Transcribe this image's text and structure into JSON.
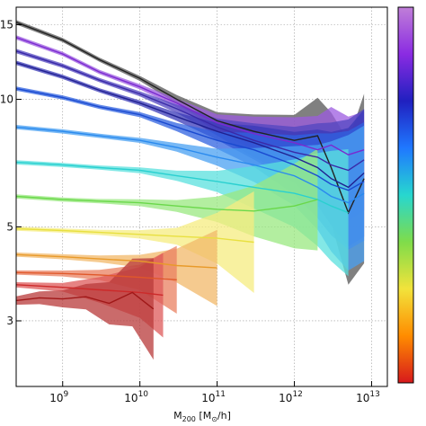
{
  "chart_data": {
    "type": "line",
    "title": "",
    "ylabel": "",
    "xlabel_main": "M",
    "xlabel_sub": "200",
    "xlabel_units_open": " [M",
    "xlabel_units_sub": "⊙",
    "xlabel_units_close": "/h]",
    "xscale": "log",
    "yscale": "log",
    "xlim": [
      250000000.0,
      16000000000000.0
    ],
    "ylim": [
      2.1,
      16.5
    ],
    "grid": true,
    "legend": "none",
    "x_ticks": [
      {
        "value": 1000000000.0,
        "base": "10",
        "exp": "9"
      },
      {
        "value": 10000000000.0,
        "base": "10",
        "exp": "10"
      },
      {
        "value": 100000000000.0,
        "base": "10",
        "exp": "11"
      },
      {
        "value": 1000000000000.0,
        "base": "10",
        "exp": "12"
      },
      {
        "value": 10000000000000.0,
        "base": "10",
        "exp": "13"
      }
    ],
    "y_ticks": [
      {
        "value": 3,
        "label": "3"
      },
      {
        "value": 5,
        "label": "5"
      },
      {
        "value": 10,
        "label": "10"
      },
      {
        "value": 15,
        "label": "15"
      }
    ],
    "colorbar": {
      "colors": [
        "#d7191c",
        "#ff8c00",
        "#f2e33b",
        "#7fdc4a",
        "#27d7cf",
        "#1f78ff",
        "#2020c0",
        "#8a2be2",
        "#c07fd8"
      ]
    },
    "series": [
      {
        "color": "#222222",
        "band": "#555555",
        "x": [
          250000000.0,
          1000000000.0,
          3000000000.0,
          10000000000.0,
          30000000000.0,
          100000000000.0,
          300000000000.0,
          1000000000000.0,
          2000000000000.0,
          3000000000000.0,
          5000000000000.0,
          8000000000000.0
        ],
        "y": [
          15.2,
          13.8,
          12.4,
          11.2,
          10.0,
          8.9,
          8.4,
          8.0,
          8.2,
          6.9,
          5.4,
          6.5
        ],
        "w": [
          0.005,
          0.005,
          0.005,
          0.006,
          0.01,
          0.02,
          0.04,
          0.06,
          0.09,
          0.13,
          0.17,
          0.2
        ]
      },
      {
        "color": "#7a2ad0",
        "band": "#9c5be0",
        "x": [
          250000000.0,
          1000000000.0,
          3000000000.0,
          10000000000.0,
          30000000000.0,
          100000000000.0,
          300000000000.0,
          1000000000000.0,
          2000000000000.0,
          3000000000000.0,
          5000000000000.0,
          8000000000000.0
        ],
        "y": [
          14.0,
          12.8,
          11.6,
          10.7,
          9.8,
          8.8,
          8.3,
          7.9,
          7.6,
          7.8,
          7.4,
          7.6
        ],
        "w": [
          0.005,
          0.005,
          0.005,
          0.006,
          0.01,
          0.02,
          0.04,
          0.06,
          0.08,
          0.09,
          0.09,
          0.09
        ]
      },
      {
        "color": "#3a2aa8",
        "band": "#5146c0",
        "x": [
          250000000.0,
          1000000000.0,
          3000000000.0,
          10000000000.0,
          30000000000.0,
          100000000000.0,
          300000000000.0,
          1000000000000.0,
          2000000000000.0,
          3000000000000.0,
          5000000000000.0,
          8000000000000.0
        ],
        "y": [
          13.0,
          12.0,
          11.1,
          10.3,
          9.5,
          8.6,
          8.0,
          7.5,
          7.3,
          7.0,
          6.8,
          7.2
        ],
        "w": [
          0.005,
          0.005,
          0.005,
          0.006,
          0.01,
          0.02,
          0.04,
          0.06,
          0.08,
          0.1,
          0.12,
          0.12
        ]
      },
      {
        "color": "#202090",
        "band": "#3a3ab8",
        "x": [
          250000000.0,
          1000000000.0,
          3000000000.0,
          10000000000.0,
          30000000000.0,
          100000000000.0,
          300000000000.0,
          1000000000000.0,
          2000000000000.0,
          3000000000000.0,
          5000000000000.0,
          8000000000000.0
        ],
        "y": [
          12.2,
          11.3,
          10.5,
          9.8,
          9.1,
          8.4,
          7.9,
          7.3,
          6.9,
          6.5,
          6.2,
          6.7
        ],
        "w": [
          0.005,
          0.005,
          0.005,
          0.006,
          0.01,
          0.02,
          0.04,
          0.06,
          0.09,
          0.11,
          0.14,
          0.15
        ]
      },
      {
        "color": "#1a4ad0",
        "band": "#2f62e0",
        "x": [
          250000000.0,
          1000000000.0,
          3000000000.0,
          10000000000.0,
          30000000000.0,
          100000000000.0,
          300000000000.0,
          1000000000000.0,
          2000000000000.0,
          3000000000000.0,
          5000000000000.0,
          8000000000000.0
        ],
        "y": [
          10.6,
          10.1,
          9.6,
          9.2,
          8.6,
          8.0,
          7.6,
          7.0,
          6.6,
          6.3,
          6.1,
          6.4
        ],
        "w": [
          0.005,
          0.005,
          0.005,
          0.006,
          0.01,
          0.02,
          0.04,
          0.07,
          0.1,
          0.12,
          0.14,
          0.14
        ]
      },
      {
        "color": "#2a8aee",
        "band": "#4aa0f2",
        "x": [
          250000000.0,
          1000000000.0,
          3000000000.0,
          10000000000.0,
          30000000000.0,
          100000000000.0,
          300000000000.0,
          1000000000000.0,
          2000000000000.0,
          3000000000000.0,
          5000000000000.0,
          8000000000000.0
        ],
        "y": [
          8.6,
          8.4,
          8.2,
          8.0,
          7.7,
          7.3,
          7.0,
          6.6,
          6.2,
          5.9,
          5.7,
          6.0
        ],
        "w": [
          0.005,
          0.005,
          0.005,
          0.006,
          0.01,
          0.02,
          0.04,
          0.07,
          0.1,
          0.13,
          0.16,
          0.16
        ]
      },
      {
        "color": "#2ad0d0",
        "band": "#5ae0de",
        "x": [
          250000000.0,
          1000000000.0,
          3000000000.0,
          10000000000.0,
          30000000000.0,
          100000000000.0,
          300000000000.0,
          1000000000000.0,
          2000000000000.0,
          3000000000000.0,
          5000000000000.0
        ],
        "y": [
          7.1,
          7.0,
          6.9,
          6.8,
          6.6,
          6.4,
          6.2,
          6.0,
          5.8,
          5.6,
          5.4
        ],
        "w": [
          0.005,
          0.005,
          0.005,
          0.007,
          0.012,
          0.025,
          0.05,
          0.08,
          0.11,
          0.13,
          0.15
        ]
      },
      {
        "color": "#6ad84a",
        "band": "#9ae880",
        "x": [
          250000000.0,
          1000000000.0,
          3000000000.0,
          10000000000.0,
          30000000000.0,
          100000000000.0,
          300000000000.0,
          1000000000000.0,
          2000000000000.0
        ],
        "y": [
          5.9,
          5.8,
          5.75,
          5.7,
          5.6,
          5.5,
          5.45,
          5.6,
          5.8
        ],
        "w": [
          0.005,
          0.005,
          0.005,
          0.008,
          0.014,
          0.03,
          0.06,
          0.1,
          0.12
        ]
      },
      {
        "color": "#e8e040",
        "band": "#f6ec80",
        "x": [
          250000000.0,
          1000000000.0,
          3000000000.0,
          10000000000.0,
          30000000000.0,
          100000000000.0,
          300000000000.0
        ],
        "y": [
          4.95,
          4.9,
          4.85,
          4.8,
          4.75,
          4.7,
          4.6
        ],
        "w": [
          0.005,
          0.005,
          0.006,
          0.01,
          0.02,
          0.06,
          0.12
        ]
      },
      {
        "color": "#e89a2a",
        "band": "#f2b86a",
        "x": [
          250000000.0,
          1000000000.0,
          3000000000.0,
          10000000000.0,
          30000000000.0,
          100000000000.0
        ],
        "y": [
          4.3,
          4.25,
          4.2,
          4.15,
          4.05,
          4.0
        ],
        "w": [
          0.005,
          0.006,
          0.008,
          0.015,
          0.04,
          0.09
        ]
      },
      {
        "color": "#e0582a",
        "band": "#ea8060",
        "x": [
          250000000.0,
          1000000000.0,
          3000000000.0,
          10000000000.0,
          30000000000.0
        ],
        "y": [
          3.9,
          3.88,
          3.85,
          3.8,
          3.75
        ],
        "w": [
          0.005,
          0.007,
          0.012,
          0.03,
          0.08
        ]
      },
      {
        "color": "#cc2a2a",
        "band": "#de5a5a",
        "x": [
          250000000.0,
          1000000000.0,
          3000000000.0,
          10000000000.0,
          20000000000.0
        ],
        "y": [
          3.65,
          3.6,
          3.55,
          3.5,
          3.45
        ],
        "w": [
          0.006,
          0.01,
          0.03,
          0.06,
          0.1
        ]
      },
      {
        "color": "#a01818",
        "band": "#b83a3a",
        "x": [
          250000000.0,
          500000000.0,
          1000000000.0,
          2000000000.0,
          4000000000.0,
          8000000000.0,
          15000000000.0
        ],
        "y": [
          3.35,
          3.4,
          3.38,
          3.42,
          3.3,
          3.5,
          3.2
        ],
        "w": [
          0.01,
          0.015,
          0.02,
          0.03,
          0.05,
          0.08,
          0.12
        ]
      }
    ]
  }
}
